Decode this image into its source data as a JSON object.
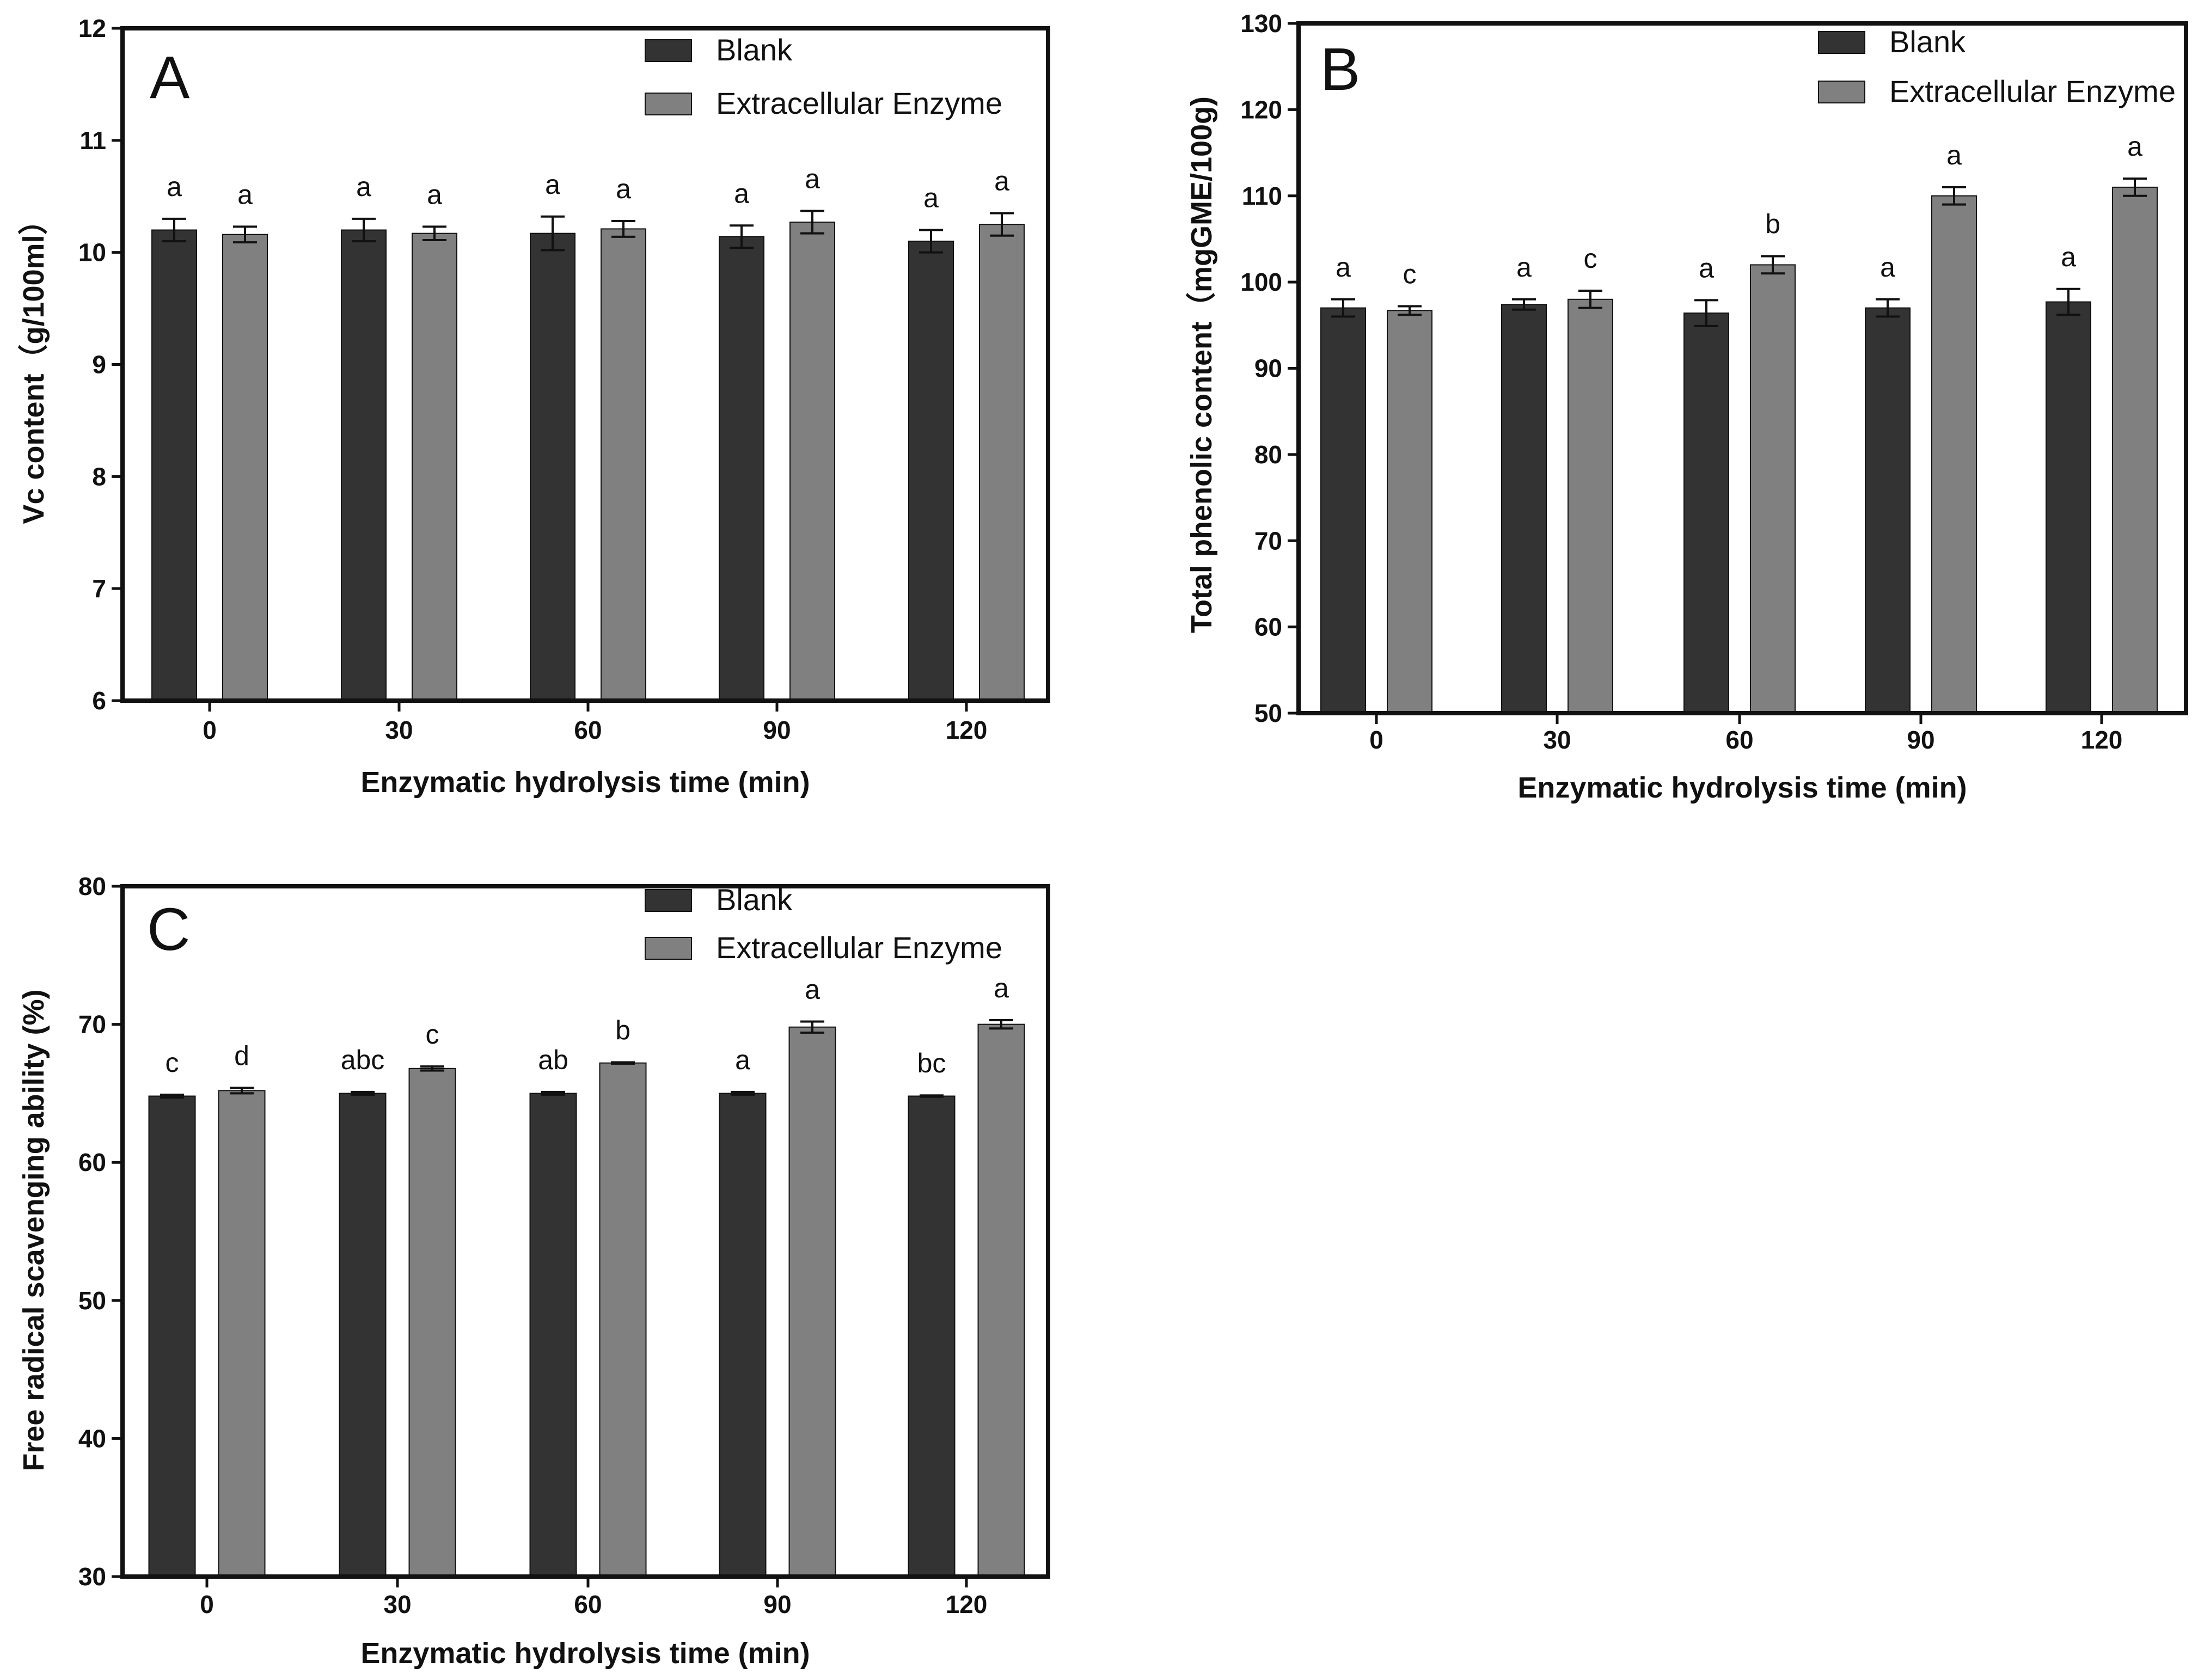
{
  "legend": {
    "blank_label": "Blank",
    "enzyme_label": "Extracellular Enzyme"
  },
  "colors": {
    "blank": "#333333",
    "enzyme": "#808080",
    "axis": "#111111"
  },
  "chart_data": [
    {
      "panel": "A",
      "type": "bar",
      "title": "",
      "xlabel": "Enzymatic hydrolysis time (min)",
      "ylabel": "Vc content（g/100ml）",
      "categories": [
        "0",
        "30",
        "60",
        "90",
        "120"
      ],
      "ylim": [
        6,
        12
      ],
      "yticks": [
        "6",
        "7",
        "8",
        "9",
        "10",
        "11",
        "12"
      ],
      "series": [
        {
          "name": "Blank",
          "values": [
            10.2,
            10.2,
            10.17,
            10.14,
            10.1
          ],
          "errors": [
            0.1,
            0.1,
            0.15,
            0.1,
            0.1
          ],
          "letters": [
            "a",
            "a",
            "a",
            "a",
            "a"
          ]
        },
        {
          "name": "Extracellular Enzyme",
          "values": [
            10.16,
            10.17,
            10.21,
            10.27,
            10.25
          ],
          "errors": [
            0.07,
            0.06,
            0.07,
            0.1,
            0.1
          ],
          "letters": [
            "a",
            "a",
            "a",
            "a",
            "a"
          ]
        }
      ],
      "legend_position": "top-right"
    },
    {
      "panel": "B",
      "type": "bar",
      "title": "",
      "xlabel": "Enzymatic hydrolysis time (min)",
      "ylabel": "Total phenolic content（mgGME/100g)",
      "categories": [
        "0",
        "30",
        "60",
        "90",
        "120"
      ],
      "ylim": [
        50,
        130
      ],
      "yticks": [
        "50",
        "60",
        "70",
        "80",
        "90",
        "100",
        "110",
        "120",
        "130"
      ],
      "series": [
        {
          "name": "Blank",
          "values": [
            97,
            97.4,
            96.4,
            97,
            97.7
          ],
          "errors": [
            1.0,
            0.6,
            1.5,
            1.0,
            1.5
          ],
          "letters": [
            "a",
            "a",
            "a",
            "a",
            "a"
          ]
        },
        {
          "name": "Extracellular Enzyme",
          "values": [
            96.7,
            98,
            102,
            110,
            111
          ],
          "errors": [
            0.5,
            1.0,
            1.0,
            1.0,
            1.0
          ],
          "letters": [
            "c",
            "c",
            "b",
            "a",
            "a"
          ]
        }
      ],
      "legend_position": "top-right"
    },
    {
      "panel": "C",
      "type": "bar",
      "title": "",
      "xlabel": "Enzymatic hydrolysis time (min)",
      "ylabel": "Free radical scavenging ability (%)",
      "categories": [
        "0",
        "30",
        "60",
        "90",
        "120"
      ],
      "ylim": [
        30,
        80
      ],
      "yticks": [
        "30",
        "40",
        "50",
        "60",
        "70",
        "80"
      ],
      "series": [
        {
          "name": "Blank",
          "values": [
            64.8,
            65,
            65,
            65,
            64.8
          ],
          "errors": [
            0.1,
            0.1,
            0.1,
            0.1,
            0.05
          ],
          "letters": [
            "c",
            "abc",
            "ab",
            "a",
            "bc"
          ]
        },
        {
          "name": "Extracellular Enzyme",
          "values": [
            65.2,
            66.8,
            67.2,
            69.8,
            70
          ],
          "errors": [
            0.2,
            0.15,
            0.05,
            0.4,
            0.3
          ],
          "letters": [
            "d",
            "c",
            "b",
            "a",
            "a"
          ]
        }
      ],
      "legend_position": "top-right"
    }
  ]
}
